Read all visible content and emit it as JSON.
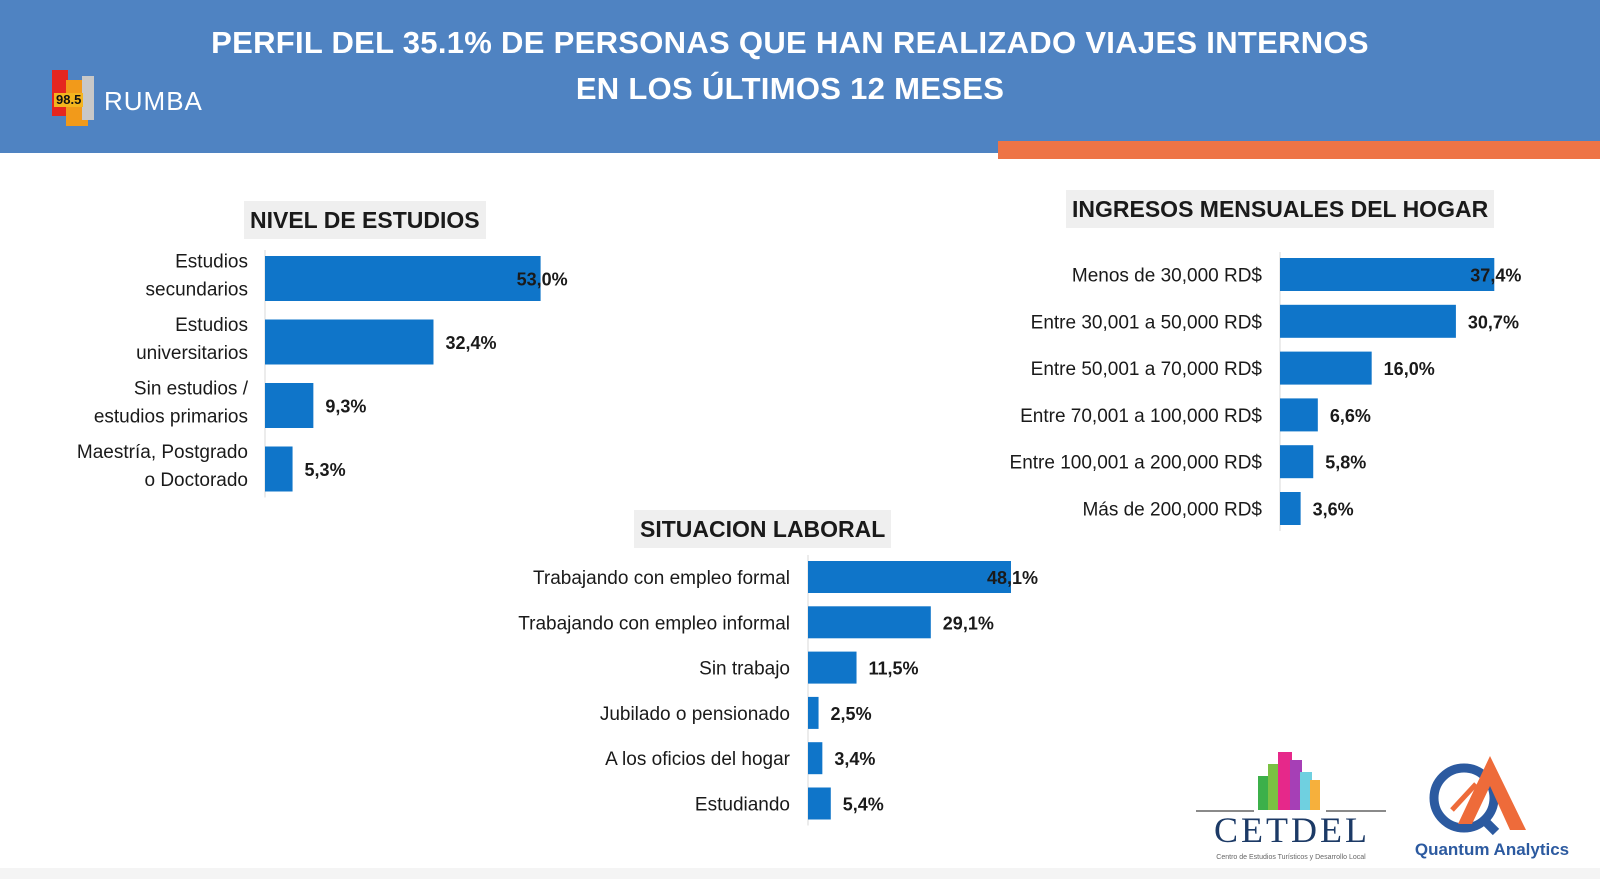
{
  "header": {
    "title_line1": "PERFIL DEL 35.1% DE PERSONAS QUE HAN REALIZADO VIAJES INTERNOS",
    "title_line2": "EN LOS ÚLTIMOS 12 MESES",
    "background_color": "#4f83c2",
    "accent_color": "#ee7446"
  },
  "logos": {
    "rumba_frequency": "98.5",
    "rumba_name": "RUMBA",
    "cetdel_name": "CETDEL",
    "cetdel_subtitle": "Centro de Estudios Turísticos y Desarrollo Local",
    "quantum_name": "Quantum Analytics"
  },
  "bar_color": "#0f75c9",
  "chart_data": [
    {
      "type": "bar",
      "orientation": "horizontal",
      "title": "NIVEL DE ESTUDIOS",
      "categories": [
        "Estudios secundarios",
        "Estudios universitarios",
        "Sin estudios / estudios primarios",
        "Maestría, Postgrado o Doctorado"
      ],
      "category_lines": [
        [
          "Estudios",
          "secundarios"
        ],
        [
          "Estudios",
          "universitarios"
        ],
        [
          "Sin estudios /",
          "estudios primarios"
        ],
        [
          "Maestría, Postgrado",
          "o Doctorado"
        ]
      ],
      "values": [
        53.0,
        32.4,
        9.3,
        5.3
      ],
      "value_labels": [
        "53,0%",
        "32,4%",
        "9,3%",
        "5,3%"
      ],
      "unit": "%"
    },
    {
      "type": "bar",
      "orientation": "horizontal",
      "title": "INGRESOS MENSUALES DEL HOGAR",
      "categories": [
        "Menos de 30,000 RD$",
        "Entre 30,001 a 50,000 RD$",
        "Entre 50,001 a 70,000 RD$",
        "Entre 70,001 a 100,000 RD$",
        "Entre 100,001 a 200,000 RD$",
        "Más de 200,000 RD$"
      ],
      "values": [
        37.4,
        30.7,
        16.0,
        6.6,
        5.8,
        3.6
      ],
      "value_labels": [
        "37,4%",
        "30,7%",
        "16,0%",
        "6,6%",
        "5,8%",
        "3,6%"
      ],
      "unit": "%"
    },
    {
      "type": "bar",
      "orientation": "horizontal",
      "title": "SITUACION LABORAL",
      "categories": [
        "Trabajando con empleo formal",
        "Trabajando con empleo informal",
        "Sin trabajo",
        "Jubilado o pensionado",
        "A los oficios del hogar",
        "Estudiando"
      ],
      "values": [
        48.1,
        29.1,
        11.5,
        2.5,
        3.4,
        5.4
      ],
      "value_labels": [
        "48,1%",
        "29,1%",
        "11,5%",
        "2,5%",
        "3,4%",
        "5,4%"
      ],
      "unit": "%"
    }
  ]
}
